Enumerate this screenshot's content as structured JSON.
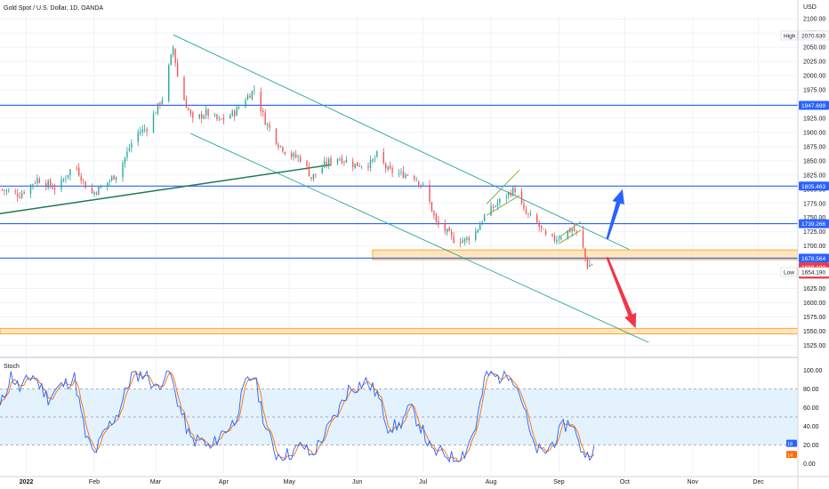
{
  "title": "Gold Spot / U.S. Dollar, 1D, OANDA",
  "stoch_label": "Stoch",
  "price_axis": {
    "currency": "USD",
    "min": 1510,
    "max": 2105,
    "ticks": [
      2100,
      2075,
      2050,
      2025,
      2000,
      1975,
      1950,
      1925,
      1900,
      1875,
      1850,
      1825,
      1800,
      1775,
      1750,
      1725,
      1700,
      1675,
      1650,
      1625,
      1600,
      1575,
      1550,
      1525
    ],
    "tick_labels": [
      "2100.00",
      "2075.00",
      "2050.00",
      "2025.00",
      "2000.00",
      "1975.00",
      "1950.00",
      "1925.00",
      "1900.00",
      "1875.00",
      "1850.00",
      "1825.00",
      "1800.00",
      "1775.00",
      "1750.00",
      "1725.00",
      "1700.00",
      "1675.00",
      "1650.00",
      "1625.00",
      "1600.00",
      "1575.00",
      "1550.00",
      "1525.00"
    ]
  },
  "stoch_axis": {
    "min": -10,
    "max": 110,
    "ticks": [
      100,
      80,
      60,
      40,
      20,
      0
    ],
    "tick_labels": [
      "100.00",
      "80.00",
      "60.00",
      "40.00",
      "20.00",
      "0.00"
    ],
    "band": [
      20,
      80
    ]
  },
  "time_axis": {
    "labels": [
      {
        "day": 0,
        "text": "2022"
      },
      {
        "day": 31,
        "text": "Feb"
      },
      {
        "day": 59,
        "text": "Mar"
      },
      {
        "day": 90,
        "text": "Apr"
      },
      {
        "day": 120,
        "text": "May"
      },
      {
        "day": 151,
        "text": "Jun"
      },
      {
        "day": 181,
        "text": "Jul"
      },
      {
        "day": 212,
        "text": "Aug"
      },
      {
        "day": 243,
        "text": "Sep"
      },
      {
        "day": 273,
        "text": "Oct"
      },
      {
        "day": 304,
        "text": "Nov"
      },
      {
        "day": 334,
        "text": "Dec"
      }
    ]
  },
  "price_tags": [
    {
      "label": "High",
      "value_text": "2070.630",
      "value": 2070.63,
      "style": "plain"
    },
    {
      "value_text": "1947.699",
      "value": 1947.699,
      "style": "blue"
    },
    {
      "value_text": "1805.463",
      "value": 1805.463,
      "style": "blue"
    },
    {
      "value_text": "1739.266",
      "value": 1739.266,
      "style": "blue"
    },
    {
      "value_text": "1678.564",
      "value": 1678.564,
      "style": "blue"
    },
    {
      "value_text": "1669.180",
      "extra": "15:49:00",
      "value": 1669.18,
      "style": "red"
    },
    {
      "label": "Low",
      "value_text": "1654.190",
      "value": 1654.19,
      "style": "plain"
    }
  ],
  "stoch_tags": [
    {
      "value_text": "18.96",
      "value": 18.96,
      "color": "#2962ff"
    },
    {
      "value_text": "14.60",
      "value": 14.6,
      "color": "#ff6d00"
    }
  ],
  "colors": {
    "up": "#26a69a",
    "down": "#ef5350",
    "hline": "#2962ff",
    "channel": "#26a69a",
    "support": "#1b7a4e",
    "zone_fill": "#ffe0b2",
    "zone_stroke": "#ff9800",
    "stoch_k": "#2962ff",
    "stoch_d": "#ff6d00",
    "stoch_band": "#e3f2fd",
    "arrow_up": "#2962ff",
    "arrow_down": "#f23645",
    "grid": "#f0f3fa"
  },
  "chart_data": {
    "type": "candlestick",
    "title": "Gold Spot / U.S. Dollar, 1D, OANDA",
    "ylabel": "USD",
    "ylim": [
      1510,
      2105
    ],
    "x_unit": "days since 2022-01-01",
    "xlim": [
      -12,
      352
    ],
    "last_day": 259,
    "keypoints": [
      {
        "day": -12,
        "price": 1800
      },
      {
        "day": -3,
        "price": 1790
      },
      {
        "day": 5,
        "price": 1818
      },
      {
        "day": 14,
        "price": 1800
      },
      {
        "day": 22,
        "price": 1845
      },
      {
        "day": 29,
        "price": 1790
      },
      {
        "day": 35,
        "price": 1805
      },
      {
        "day": 42,
        "price": 1830
      },
      {
        "day": 50,
        "price": 1898
      },
      {
        "day": 55,
        "price": 1908
      },
      {
        "day": 62,
        "price": 1960
      },
      {
        "day": 67,
        "price": 2050
      },
      {
        "day": 69,
        "price": 1999
      },
      {
        "day": 72,
        "price": 1958
      },
      {
        "day": 76,
        "price": 1920
      },
      {
        "day": 82,
        "price": 1935
      },
      {
        "day": 88,
        "price": 1920
      },
      {
        "day": 95,
        "price": 1935
      },
      {
        "day": 100,
        "price": 1960
      },
      {
        "day": 104,
        "price": 1975
      },
      {
        "day": 109,
        "price": 1920
      },
      {
        "day": 115,
        "price": 1880
      },
      {
        "day": 120,
        "price": 1860
      },
      {
        "day": 126,
        "price": 1853
      },
      {
        "day": 130,
        "price": 1820
      },
      {
        "day": 137,
        "price": 1846
      },
      {
        "day": 142,
        "price": 1856
      },
      {
        "day": 150,
        "price": 1843
      },
      {
        "day": 157,
        "price": 1845
      },
      {
        "day": 160,
        "price": 1860
      },
      {
        "day": 165,
        "price": 1833
      },
      {
        "day": 171,
        "price": 1826
      },
      {
        "day": 176,
        "price": 1827
      },
      {
        "day": 182,
        "price": 1800
      },
      {
        "day": 187,
        "price": 1740
      },
      {
        "day": 190,
        "price": 1732
      },
      {
        "day": 195,
        "price": 1711
      },
      {
        "day": 200,
        "price": 1710
      },
      {
        "day": 205,
        "price": 1725
      },
      {
        "day": 209,
        "price": 1753
      },
      {
        "day": 213,
        "price": 1768
      },
      {
        "day": 219,
        "price": 1790
      },
      {
        "day": 223,
        "price": 1800
      },
      {
        "day": 227,
        "price": 1760
      },
      {
        "day": 233,
        "price": 1740
      },
      {
        "day": 238,
        "price": 1710
      },
      {
        "day": 241,
        "price": 1712
      },
      {
        "day": 246,
        "price": 1723
      },
      {
        "day": 249,
        "price": 1730
      },
      {
        "day": 251,
        "price": 1723
      },
      {
        "day": 253,
        "price": 1710
      },
      {
        "day": 256,
        "price": 1665
      },
      {
        "day": 259,
        "price": 1669.18
      }
    ],
    "drawings": {
      "horizontal_lines": [
        1947.699,
        1805.463,
        1739.266,
        1678.564
      ],
      "zones": [
        {
          "from_day": 158,
          "to_day": 352,
          "top": 1693,
          "bottom": 1676
        },
        {
          "from_day": -12,
          "to_day": 352,
          "top": 1555,
          "bottom": 1545
        }
      ],
      "channel_upper": [
        {
          "day": 67,
          "price": 2072
        },
        {
          "day": 275,
          "price": 1694
        }
      ],
      "channel_lower": [
        {
          "day": 75,
          "price": 1898
        },
        {
          "day": 284,
          "price": 1530
        }
      ],
      "support_line": [
        {
          "day": -12,
          "price": 1757
        },
        {
          "day": 139,
          "price": 1843
        }
      ],
      "flags": [
        {
          "from_day": 210,
          "to_day": 225,
          "top": [
            1774,
            1834
          ],
          "bottom": [
            1754,
            1789
          ]
        },
        {
          "from_day": 243,
          "to_day": 253,
          "top": [
            1715,
            1743
          ],
          "bottom": [
            1704,
            1728
          ]
        }
      ],
      "arrows": [
        {
          "direction": "up",
          "from": {
            "day": 265,
            "price": 1712
          },
          "to": {
            "day": 272,
            "price": 1800
          }
        },
        {
          "direction": "down",
          "from": {
            "day": 265,
            "price": 1680
          },
          "to": {
            "day": 278,
            "price": 1555
          }
        }
      ]
    },
    "stoch_keypoints": [
      {
        "day": -12,
        "k": 60
      },
      {
        "day": -7,
        "k": 95
      },
      {
        "day": -3,
        "k": 80
      },
      {
        "day": 3,
        "k": 95
      },
      {
        "day": 10,
        "k": 70
      },
      {
        "day": 14,
        "k": 80
      },
      {
        "day": 22,
        "k": 92
      },
      {
        "day": 27,
        "k": 30
      },
      {
        "day": 31,
        "k": 10
      },
      {
        "day": 36,
        "k": 35
      },
      {
        "day": 42,
        "k": 55
      },
      {
        "day": 48,
        "k": 95
      },
      {
        "day": 55,
        "k": 96
      },
      {
        "day": 59,
        "k": 80
      },
      {
        "day": 65,
        "k": 100
      },
      {
        "day": 70,
        "k": 60
      },
      {
        "day": 75,
        "k": 25
      },
      {
        "day": 80,
        "k": 25
      },
      {
        "day": 84,
        "k": 15
      },
      {
        "day": 88,
        "k": 30
      },
      {
        "day": 95,
        "k": 45
      },
      {
        "day": 100,
        "k": 85
      },
      {
        "day": 104,
        "k": 95
      },
      {
        "day": 109,
        "k": 40
      },
      {
        "day": 114,
        "k": 10
      },
      {
        "day": 120,
        "k": 10
      },
      {
        "day": 126,
        "k": 20
      },
      {
        "day": 130,
        "k": 8
      },
      {
        "day": 137,
        "k": 35
      },
      {
        "day": 142,
        "k": 55
      },
      {
        "day": 147,
        "k": 80
      },
      {
        "day": 150,
        "k": 82
      },
      {
        "day": 155,
        "k": 88
      },
      {
        "day": 160,
        "k": 75
      },
      {
        "day": 165,
        "k": 40
      },
      {
        "day": 170,
        "k": 40
      },
      {
        "day": 175,
        "k": 60
      },
      {
        "day": 180,
        "k": 40
      },
      {
        "day": 185,
        "k": 12
      },
      {
        "day": 190,
        "k": 12
      },
      {
        "day": 195,
        "k": 5
      },
      {
        "day": 200,
        "k": 12
      },
      {
        "day": 205,
        "k": 40
      },
      {
        "day": 210,
        "k": 97
      },
      {
        "day": 215,
        "k": 92
      },
      {
        "day": 221,
        "k": 98
      },
      {
        "day": 226,
        "k": 70
      },
      {
        "day": 231,
        "k": 20
      },
      {
        "day": 236,
        "k": 10
      },
      {
        "day": 241,
        "k": 25
      },
      {
        "day": 245,
        "k": 40
      },
      {
        "day": 249,
        "k": 45
      },
      {
        "day": 252,
        "k": 20
      },
      {
        "day": 256,
        "k": 8
      },
      {
        "day": 259,
        "k": 18.96
      }
    ]
  }
}
